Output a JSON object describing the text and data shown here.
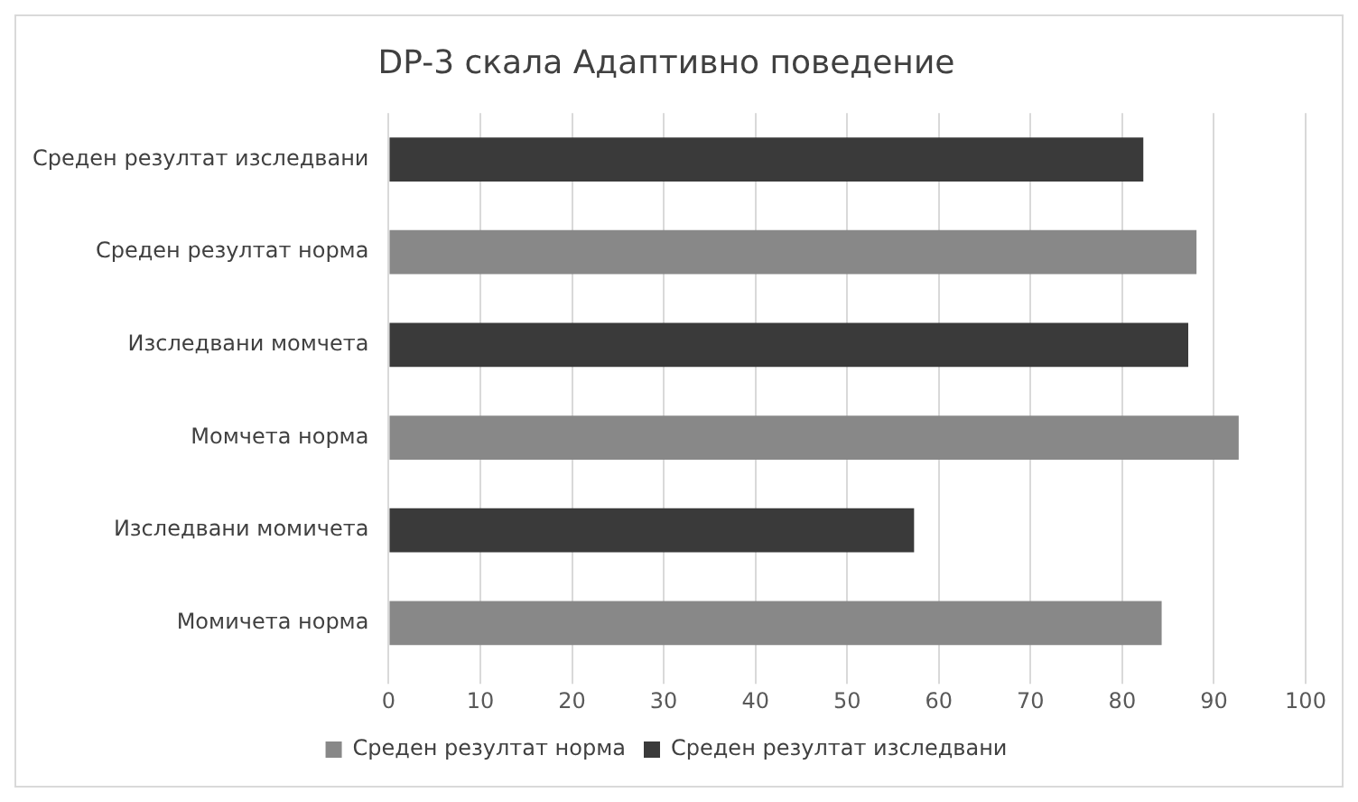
{
  "chart_data": {
    "type": "bar",
    "orientation": "horizontal",
    "title": "DP-3 скала Адаптивно поведение",
    "categories": [
      "Среден резултат изследвани",
      "Среден резултат норма",
      "Изследвани момчета",
      "Момчета норма",
      "Изследвани момичета",
      "Момичета норма"
    ],
    "series": [
      {
        "name": "Среден резултат норма",
        "color": "#888888",
        "values": [
          null,
          88.1,
          null,
          92.7,
          null,
          84.3
        ]
      },
      {
        "name": "Среден резултат изследвани",
        "color": "#3a3a3a",
        "values": [
          82.3,
          null,
          87.2,
          null,
          57.3,
          null
        ]
      }
    ],
    "xlim": [
      0,
      100
    ],
    "xticks": [
      0,
      10,
      20,
      30,
      40,
      50,
      60,
      70,
      80,
      90,
      100
    ],
    "grid": "x",
    "legend": "bottom"
  }
}
